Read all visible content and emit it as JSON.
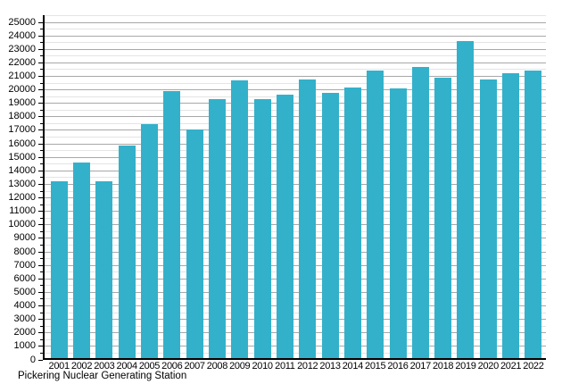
{
  "chart_data": {
    "type": "bar",
    "title": "",
    "caption": "Pickering Nuclear Generating Station",
    "categories": [
      "2001",
      "2002",
      "2003",
      "2004",
      "2005",
      "2006",
      "2007",
      "2008",
      "2009",
      "2010",
      "2011",
      "2012",
      "2013",
      "2014",
      "2015",
      "2016",
      "2017",
      "2018",
      "2019",
      "2020",
      "2021",
      "2022"
    ],
    "values": [
      13200,
      14600,
      13200,
      15900,
      17450,
      19900,
      17050,
      19300,
      20700,
      19300,
      19650,
      20800,
      19800,
      20200,
      21400,
      20100,
      21700,
      20900,
      23600,
      20800,
      21200,
      21450
    ],
    "xlabel": "",
    "ylabel": "",
    "ylim": [
      0,
      25000
    ],
    "y_major_step": 1000,
    "y_minor_step": 500,
    "y_tick_labels": [
      "0",
      "1000",
      "2000",
      "3000",
      "4000",
      "5000",
      "6000",
      "7000",
      "8000",
      "9000",
      "10000",
      "11000",
      "12000",
      "13000",
      "14000",
      "15000",
      "16000",
      "17000",
      "18000",
      "19000",
      "20000",
      "21000",
      "22000",
      "23000",
      "24000",
      "25000"
    ],
    "grid": "major-and-minor",
    "legend": "none",
    "colors": {
      "bar": "#33b1ca",
      "major_grid": "#a8a8a8",
      "minor_grid": "#e4e4e4",
      "axis": "#000000",
      "text": "#000000",
      "background": "#ffffff"
    }
  }
}
